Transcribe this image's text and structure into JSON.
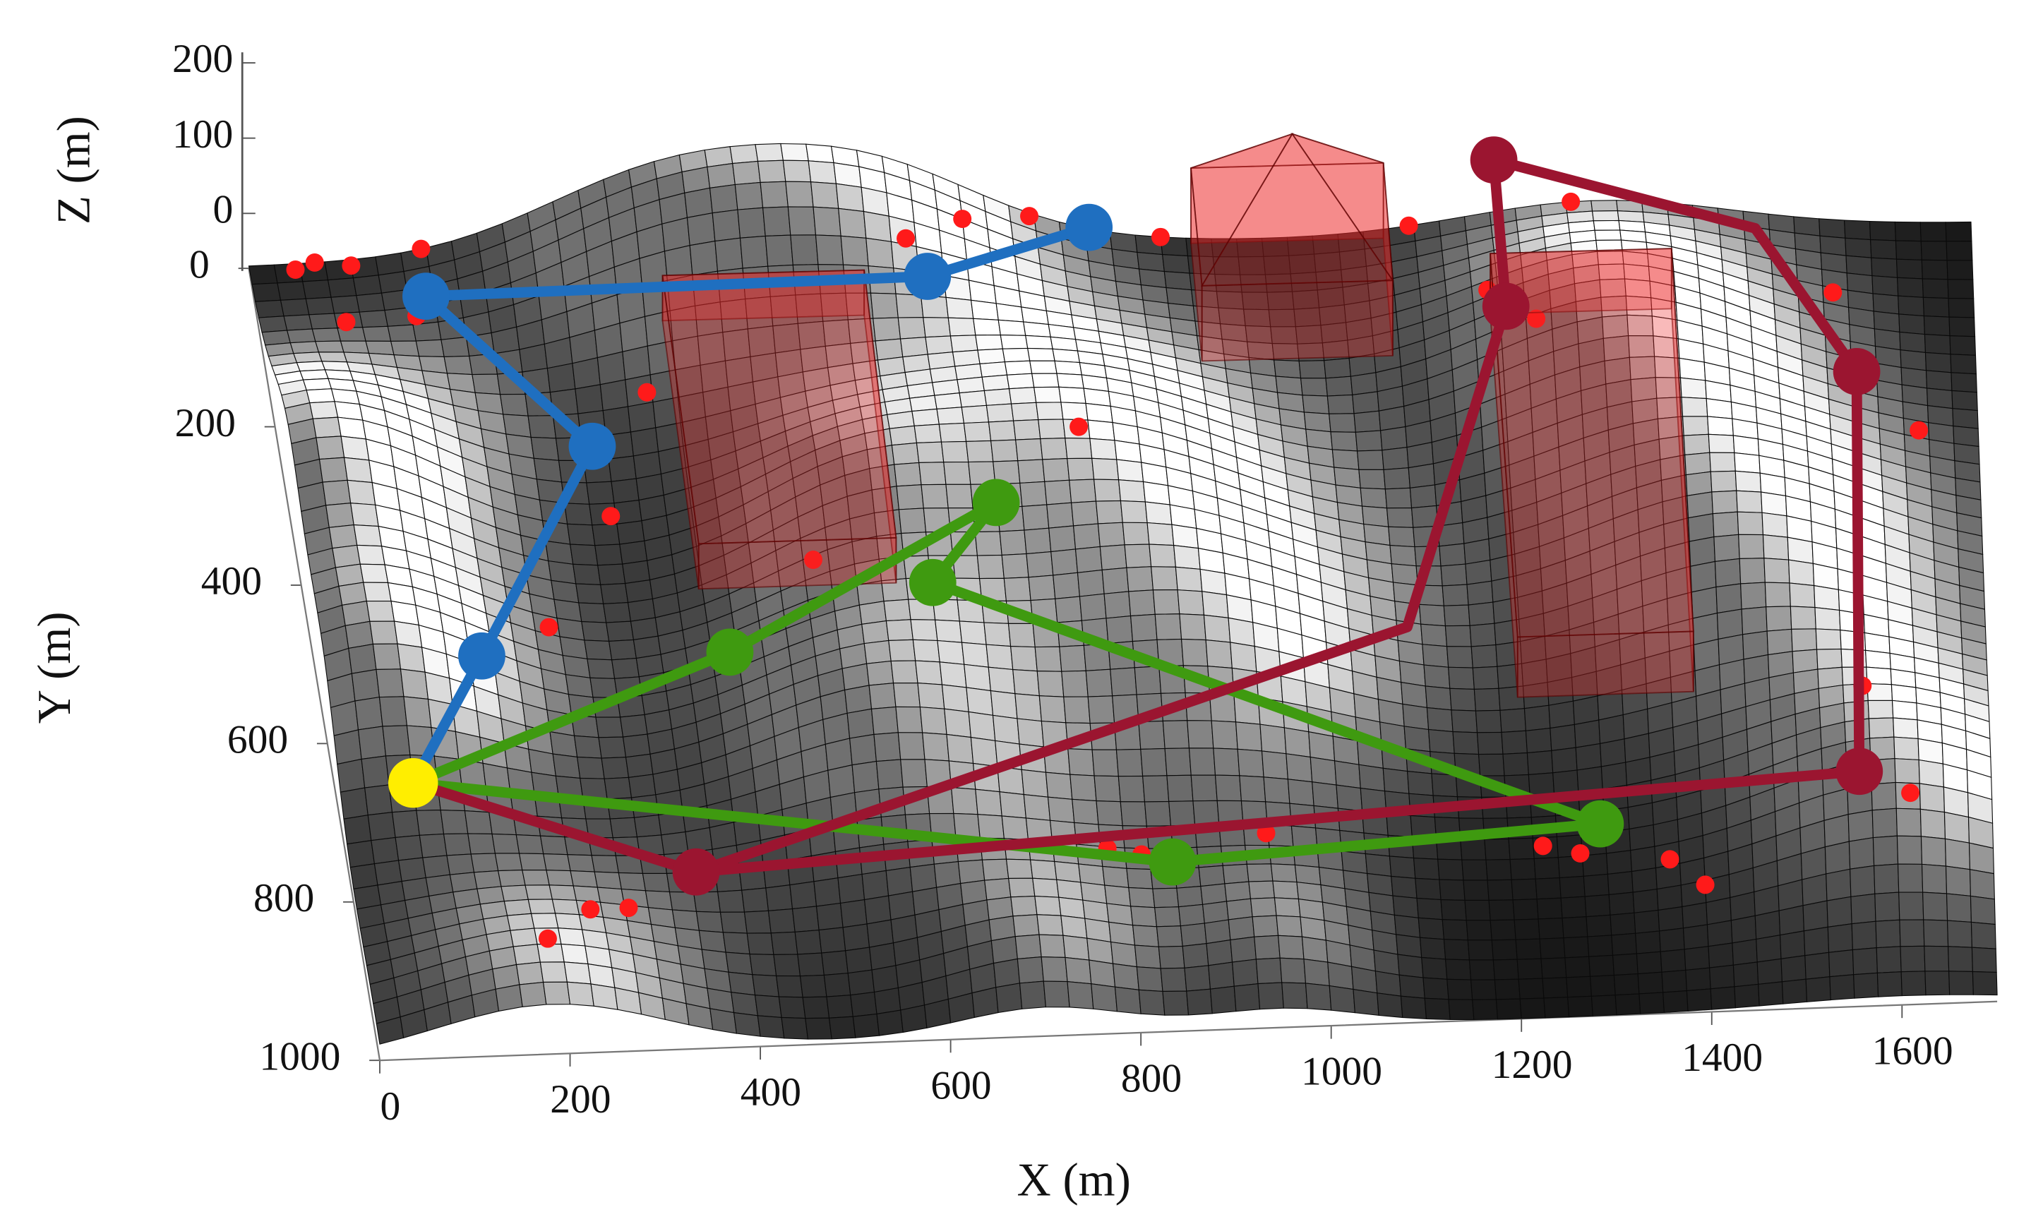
{
  "chart_data": {
    "type": "surface3d",
    "xlabel": "X (m)",
    "ylabel": "Y (m)",
    "zlabel": "Z (m)",
    "xlim": [
      0,
      1700
    ],
    "ylim": [
      0,
      1000
    ],
    "zlim": [
      0,
      200
    ],
    "xticks": [
      0,
      200,
      400,
      600,
      800,
      1000,
      1200,
      1400,
      1600
    ],
    "yticks": [
      0,
      200,
      400,
      600,
      800,
      1000
    ],
    "zticks": [
      0,
      100,
      200
    ],
    "terrain": {
      "peaks": [
        {
          "x": 420,
          "y": 30,
          "z": 120,
          "r": 130
        },
        {
          "x": 620,
          "y": 20,
          "z": 90,
          "r": 110
        },
        {
          "x": 40,
          "y": 300,
          "z": 110,
          "r": 110
        },
        {
          "x": 60,
          "y": 560,
          "z": 100,
          "r": 110
        },
        {
          "x": 780,
          "y": 320,
          "z": 110,
          "r": 140
        },
        {
          "x": 560,
          "y": 380,
          "z": 80,
          "r": 100
        },
        {
          "x": 560,
          "y": 640,
          "z": 100,
          "r": 130
        },
        {
          "x": 900,
          "y": 560,
          "z": 90,
          "r": 140
        },
        {
          "x": 1330,
          "y": 180,
          "z": 110,
          "r": 130
        },
        {
          "x": 1450,
          "y": 460,
          "z": 110,
          "r": 140
        },
        {
          "x": 1600,
          "y": 760,
          "z": 90,
          "r": 120
        },
        {
          "x": 180,
          "y": 960,
          "z": 70,
          "r": 120
        },
        {
          "x": 700,
          "y": 930,
          "z": 50,
          "r": 90
        },
        {
          "x": 950,
          "y": 920,
          "z": 40,
          "r": 80
        }
      ]
    },
    "obstacles": [
      {
        "x": [
          400,
          600
        ],
        "y": [
          80,
          420
        ],
        "z": 60
      },
      {
        "x": 930,
        "y": [
          0,
          150
        ],
        "z": 100,
        "peak": 220,
        "x2": 1120
      },
      {
        "x": [
          1220,
          1400
        ],
        "y": [
          100,
          590
        ],
        "z": 80
      }
    ],
    "threats": {
      "color": "#ff1a1a",
      "x": [
        45,
        65,
        100,
        170,
        85,
        155,
        770,
        900,
        700,
        640,
        370,
        320,
        240,
        415,
        510,
        790,
        187,
        238,
        279,
        782,
        817,
        948,
        1235,
        1273,
        1365,
        1400,
        1615,
        1570,
        1640,
        1560,
        1215,
        1260,
        1305,
        1145
      ],
      "y": [
        8,
        0,
        8,
        0,
        90,
        88,
        5,
        0,
        50,
        94,
        215,
        340,
        490,
        562,
        480,
        360,
        917,
        864,
        854,
        802,
        807,
        785,
        785,
        797,
        818,
        855,
        810,
        678,
        289,
        107,
        140,
        206,
        0,
        0
      ]
    },
    "start": {
      "x": 81,
      "y": 653,
      "color": "#ffee00"
    },
    "series": [
      {
        "color": "#1f6fc0",
        "x": [
          81,
          171,
          313,
          170,
          667,
          829
        ],
        "y": [
          653,
          496,
          236,
          41,
          33,
          5
        ],
        "z": [
          0,
          0,
          0,
          0,
          0,
          30
        ],
        "markers": [
          false,
          true,
          true,
          true,
          true,
          true
        ]
      },
      {
        "color": "#3f9a10",
        "x": [
          81,
          423,
          710,
          637,
          1296,
          851,
          81
        ],
        "y": [
          653,
          501,
          322,
          421,
          755,
          785,
          653
        ],
        "z": [
          0,
          0,
          0,
          0,
          0,
          0,
          0
        ],
        "markers": [
          false,
          true,
          true,
          true,
          true,
          true,
          false
        ]
      },
      {
        "color": "#9b1530",
        "x": [
          81,
          358,
          1566,
          1581,
          1487,
          1229,
          1236,
          1113,
          358
        ],
        "y": [
          653,
          777,
          699,
          187,
          0,
          0,
          91,
          496,
          777
        ],
        "z": [
          0,
          0,
          0,
          0,
          0,
          100,
          0,
          0,
          0
        ],
        "markers": [
          false,
          true,
          true,
          true,
          false,
          true,
          true,
          false,
          false
        ]
      }
    ]
  }
}
